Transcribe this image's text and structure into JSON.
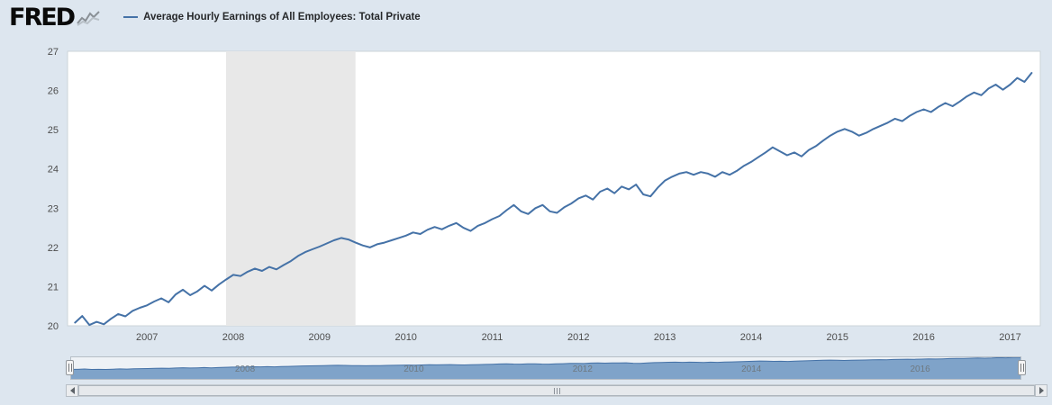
{
  "header": {
    "brand": "FRED",
    "legend_label": "Average Hourly Earnings of All Employees: Total Private"
  },
  "colors": {
    "background": "#dde6ef",
    "plot_bg": "#ffffff",
    "plot_border": "#ccd4da",
    "line": "#4572a7",
    "recession_band": "#e8e8e8",
    "navigator_bg": "#eef2f6",
    "navigator_border": "#b6bec6",
    "navigator_fill": "#7fa3c9",
    "navigator_line": "#4572a7"
  },
  "chart_data": {
    "type": "line",
    "title": "Average Hourly Earnings of All Employees: Total Private",
    "xlabel": "",
    "ylabel": "",
    "ylim": [
      20,
      27
    ],
    "xlim": [
      2006.08,
      2017.35
    ],
    "yticks": [
      20,
      21,
      22,
      23,
      24,
      25,
      26,
      27
    ],
    "xticks": [
      2007,
      2008,
      2009,
      2010,
      2011,
      2012,
      2013,
      2014,
      2015,
      2016,
      2017
    ],
    "grid": false,
    "legend_position": "top",
    "recession_bands": [
      [
        2007.917,
        2009.417
      ]
    ],
    "series": [
      {
        "name": "Average Hourly Earnings of All Employees: Total Private",
        "frequency": "monthly",
        "x_start": 2006.1667,
        "x_step_years": 0.08333,
        "values": [
          20.08,
          20.25,
          20.02,
          20.1,
          20.04,
          20.18,
          20.3,
          20.24,
          20.38,
          20.46,
          20.52,
          20.62,
          20.7,
          20.6,
          20.8,
          20.92,
          20.78,
          20.88,
          21.02,
          20.9,
          21.05,
          21.18,
          21.3,
          21.27,
          21.38,
          21.46,
          21.4,
          21.5,
          21.44,
          21.55,
          21.65,
          21.78,
          21.88,
          21.95,
          22.02,
          22.1,
          22.18,
          22.24,
          22.2,
          22.12,
          22.05,
          22.0,
          22.08,
          22.12,
          22.18,
          22.24,
          22.3,
          22.38,
          22.34,
          22.45,
          22.52,
          22.46,
          22.55,
          22.62,
          22.5,
          22.42,
          22.55,
          22.62,
          22.72,
          22.8,
          22.95,
          23.08,
          22.92,
          22.85,
          23.0,
          23.08,
          22.92,
          22.88,
          23.02,
          23.12,
          23.25,
          23.32,
          23.22,
          23.42,
          23.5,
          23.38,
          23.55,
          23.48,
          23.6,
          23.35,
          23.3,
          23.52,
          23.7,
          23.8,
          23.88,
          23.92,
          23.85,
          23.92,
          23.88,
          23.8,
          23.92,
          23.85,
          23.95,
          24.08,
          24.18,
          24.3,
          24.42,
          24.55,
          24.45,
          24.35,
          24.42,
          24.32,
          24.48,
          24.58,
          24.72,
          24.85,
          24.95,
          25.02,
          24.95,
          24.85,
          24.92,
          25.02,
          25.1,
          25.18,
          25.28,
          25.22,
          25.35,
          25.45,
          25.52,
          25.45,
          25.58,
          25.68,
          25.6,
          25.72,
          25.85,
          25.95,
          25.88,
          26.05,
          26.15,
          26.02,
          26.15,
          26.32,
          26.22,
          26.45
        ]
      }
    ]
  },
  "navigator": {
    "tick_labels": [
      "2008",
      "2010",
      "2012",
      "2014",
      "2016"
    ]
  }
}
